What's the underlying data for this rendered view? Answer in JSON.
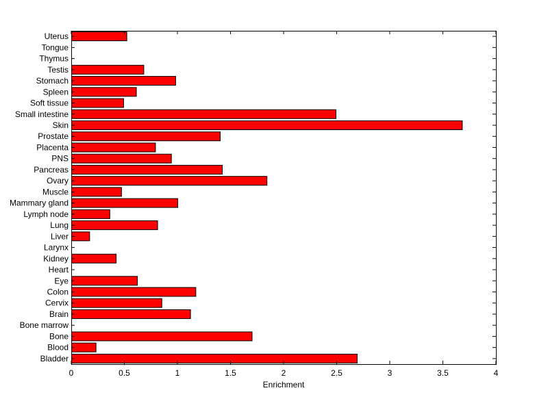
{
  "chart_data": {
    "type": "bar",
    "orientation": "horizontal",
    "categories": [
      "Bladder",
      "Blood",
      "Bone",
      "Bone marrow",
      "Brain",
      "Cervix",
      "Colon",
      "Eye",
      "Heart",
      "Kidney",
      "Larynx",
      "Liver",
      "Lung",
      "Lymph node",
      "Mammary gland",
      "Muscle",
      "Ovary",
      "Pancreas",
      "PNS",
      "Placenta",
      "Prostate",
      "Skin",
      "Small intestine",
      "Soft tissue",
      "Spleen",
      "Stomach",
      "Testis",
      "Thymus",
      "Tongue",
      "Uterus"
    ],
    "values": [
      2.69,
      0.23,
      1.7,
      0,
      1.12,
      0.85,
      1.17,
      0.62,
      0,
      0.42,
      0,
      0.17,
      0.81,
      0.36,
      1.0,
      0.47,
      1.84,
      1.42,
      0.94,
      0.79,
      1.4,
      3.68,
      2.49,
      0.49,
      0.61,
      0.98,
      0.68,
      0,
      0,
      0.52
    ],
    "title": "",
    "xlabel": "Enrichment",
    "ylabel": "",
    "xlim": [
      0,
      4
    ],
    "xticks": [
      "0",
      "0.5",
      "1",
      "1.5",
      "2",
      "2.5",
      "3",
      "3.5",
      "4"
    ],
    "bar_color": "#ff0000",
    "edge_color": "#000000",
    "grid": false,
    "legend": "none"
  }
}
